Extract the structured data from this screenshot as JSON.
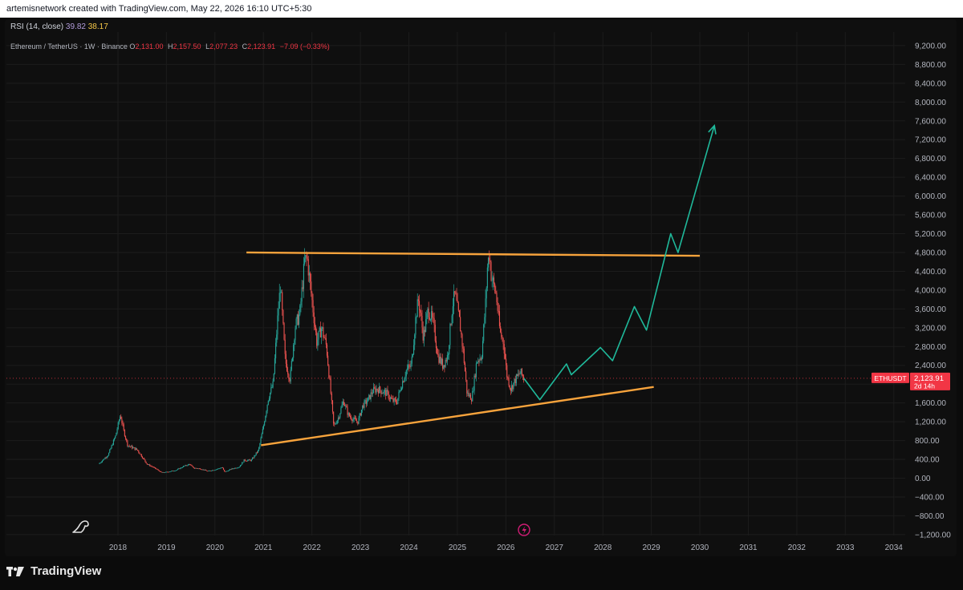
{
  "header": {
    "attribution": "artemisnetwork created with TradingView.com, May 22, 2026 16:10 UTC+5:30"
  },
  "indicator": {
    "name": "RSI (14, close)",
    "value1": "39.82",
    "value2": "38.17"
  },
  "legend": {
    "symbol": "Ethereum / TetherUS · 1W · Binance",
    "o_label": "O",
    "o": "2,131.00",
    "h_label": "H",
    "h": "2,157.50",
    "l_label": "L",
    "l": "2,077.23",
    "c_label": "C",
    "c": "2,123.91",
    "change": "−7.09 (−0.33%)"
  },
  "price_tag": {
    "symbol": "ETHUSDT",
    "price": "2,123.91",
    "countdown": "2d 14h"
  },
  "footer": {
    "brand": "TradingView"
  },
  "colors": {
    "up": "#26a69a",
    "down": "#ef5350",
    "trendline": "#f7a33c",
    "projection": "#1fb89a",
    "tag": "#f23645"
  },
  "chart_data": {
    "type": "candlestick",
    "y_axis": {
      "min": -1300,
      "max": 9500,
      "ticks": [
        "9,200.00",
        "8,800.00",
        "8,400.00",
        "8,000.00",
        "7,600.00",
        "7,200.00",
        "6,800.00",
        "6,400.00",
        "6,000.00",
        "5,600.00",
        "5,200.00",
        "4,800.00",
        "4,400.00",
        "4,000.00",
        "3,600.00",
        "3,200.00",
        "2,800.00",
        "2,400.00",
        "2,000.00",
        "1,600.00",
        "1,200.00",
        "800.00",
        "400.00",
        "0.00",
        "−400.00",
        "−800.00",
        "−1,200.00"
      ],
      "tick_values": [
        9200,
        8800,
        8400,
        8000,
        7600,
        7200,
        6800,
        6400,
        6000,
        5600,
        5200,
        4800,
        4400,
        4000,
        3600,
        3200,
        2800,
        2400,
        2000,
        1600,
        1200,
        800,
        400,
        0,
        -400,
        -800,
        -1200
      ]
    },
    "x_axis": {
      "ticks": [
        "2018",
        "2019",
        "2020",
        "2021",
        "2022",
        "2023",
        "2024",
        "2025",
        "2026",
        "2027",
        "2028",
        "2029",
        "2030",
        "2031",
        "2032",
        "2033",
        "2034"
      ],
      "tick_values": [
        2018,
        2019,
        2020,
        2021,
        2022,
        2023,
        2024,
        2025,
        2026,
        2027,
        2028,
        2029,
        2030,
        2031,
        2032,
        2033,
        2034
      ]
    },
    "current_price": 2123.91,
    "price_path": [
      [
        2017.6,
        300
      ],
      [
        2017.8,
        500
      ],
      [
        2017.95,
        900
      ],
      [
        2018.05,
        1350
      ],
      [
        2018.12,
        1000
      ],
      [
        2018.2,
        700
      ],
      [
        2018.3,
        650
      ],
      [
        2018.4,
        600
      ],
      [
        2018.5,
        450
      ],
      [
        2018.6,
        300
      ],
      [
        2018.75,
        220
      ],
      [
        2018.9,
        120
      ],
      [
        2019.0,
        130
      ],
      [
        2019.2,
        170
      ],
      [
        2019.35,
        250
      ],
      [
        2019.48,
        300
      ],
      [
        2019.55,
        220
      ],
      [
        2019.7,
        200
      ],
      [
        2019.85,
        150
      ],
      [
        2020.0,
        180
      ],
      [
        2020.15,
        230
      ],
      [
        2020.2,
        130
      ],
      [
        2020.35,
        200
      ],
      [
        2020.5,
        240
      ],
      [
        2020.6,
        380
      ],
      [
        2020.75,
        380
      ],
      [
        2020.9,
        600
      ],
      [
        2021.0,
        1100
      ],
      [
        2021.1,
        1700
      ],
      [
        2021.2,
        2000
      ],
      [
        2021.3,
        3500
      ],
      [
        2021.35,
        4100
      ],
      [
        2021.45,
        2500
      ],
      [
        2021.55,
        2100
      ],
      [
        2021.65,
        3200
      ],
      [
        2021.75,
        3500
      ],
      [
        2021.85,
        4600
      ],
      [
        2021.9,
        4700
      ],
      [
        2022.0,
        3800
      ],
      [
        2022.1,
        2900
      ],
      [
        2022.2,
        3200
      ],
      [
        2022.3,
        2800
      ],
      [
        2022.38,
        1900
      ],
      [
        2022.45,
        1100
      ],
      [
        2022.55,
        1300
      ],
      [
        2022.65,
        1650
      ],
      [
        2022.75,
        1350
      ],
      [
        2022.85,
        1250
      ],
      [
        2022.95,
        1200
      ],
      [
        2023.05,
        1550
      ],
      [
        2023.15,
        1650
      ],
      [
        2023.25,
        1850
      ],
      [
        2023.35,
        1900
      ],
      [
        2023.45,
        1850
      ],
      [
        2023.55,
        1800
      ],
      [
        2023.65,
        1650
      ],
      [
        2023.75,
        1620
      ],
      [
        2023.85,
        2000
      ],
      [
        2023.95,
        2300
      ],
      [
        2024.05,
        2400
      ],
      [
        2024.15,
        3500
      ],
      [
        2024.2,
        3800
      ],
      [
        2024.3,
        3000
      ],
      [
        2024.4,
        3600
      ],
      [
        2024.5,
        3300
      ],
      [
        2024.6,
        2600
      ],
      [
        2024.7,
        2400
      ],
      [
        2024.8,
        2600
      ],
      [
        2024.9,
        3700
      ],
      [
        2024.95,
        3900
      ],
      [
        2025.05,
        3300
      ],
      [
        2025.12,
        2700
      ],
      [
        2025.2,
        1800
      ],
      [
        2025.3,
        1700
      ],
      [
        2025.4,
        2500
      ],
      [
        2025.5,
        2600
      ],
      [
        2025.58,
        3700
      ],
      [
        2025.62,
        4500
      ],
      [
        2025.66,
        4800
      ],
      [
        2025.7,
        4300
      ],
      [
        2025.8,
        3900
      ],
      [
        2025.88,
        3100
      ],
      [
        2025.95,
        2900
      ],
      [
        2026.02,
        2200
      ],
      [
        2026.1,
        1900
      ],
      [
        2026.2,
        2100
      ],
      [
        2026.3,
        2250
      ],
      [
        2026.37,
        2124
      ]
    ],
    "resistance_line": {
      "from": [
        2020.65,
        4800
      ],
      "to": [
        2030.0,
        4730
      ]
    },
    "support_line": {
      "from": [
        2020.95,
        700
      ],
      "to": [
        2029.05,
        1940
      ]
    },
    "projection": [
      [
        2026.37,
        2124
      ],
      [
        2026.7,
        1670
      ],
      [
        2027.25,
        2430
      ],
      [
        2027.35,
        2200
      ],
      [
        2027.95,
        2780
      ],
      [
        2028.2,
        2500
      ],
      [
        2028.65,
        3650
      ],
      [
        2028.9,
        3150
      ],
      [
        2029.4,
        5200
      ],
      [
        2029.55,
        4800
      ],
      [
        2030.3,
        7500
      ]
    ]
  }
}
